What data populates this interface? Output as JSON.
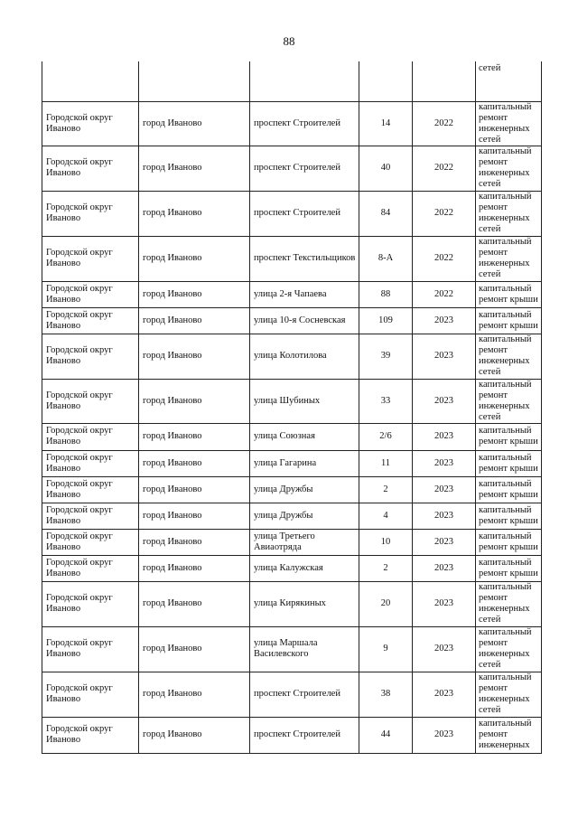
{
  "page_number": "88",
  "rows": [
    {
      "district": "",
      "city": "",
      "street": "",
      "house": "",
      "year": "",
      "work": "сетей"
    },
    {
      "district": "Городской округ Иваново",
      "city": "город Иваново",
      "street": "проспект Строителей",
      "house": "14",
      "year": "2022",
      "work": "капитальный ремонт инженерных сетей"
    },
    {
      "district": "Городской округ Иваново",
      "city": "город Иваново",
      "street": "проспект Строителей",
      "house": "40",
      "year": "2022",
      "work": "капитальный ремонт инженерных сетей"
    },
    {
      "district": "Городской округ Иваново",
      "city": "город Иваново",
      "street": "проспект Строителей",
      "house": "84",
      "year": "2022",
      "work": "капитальный ремонт инженерных сетей"
    },
    {
      "district": "Городской округ Иваново",
      "city": "город Иваново",
      "street": "проспект Текстильщиков",
      "house": "8-А",
      "year": "2022",
      "work": "капитальный ремонт инженерных сетей"
    },
    {
      "district": "Городской округ Иваново",
      "city": "город Иваново",
      "street": "улица 2-я Чапаева",
      "house": "88",
      "year": "2022",
      "work": "капитальный ремонт крыши"
    },
    {
      "district": "Городской округ Иваново",
      "city": "город Иваново",
      "street": "улица 10-я Сосневская",
      "house": "109",
      "year": "2023",
      "work": "капитальный ремонт крыши"
    },
    {
      "district": "Городской округ Иваново",
      "city": "город Иваново",
      "street": "улица Колотилова",
      "house": "39",
      "year": "2023",
      "work": "капитальный ремонт инженерных сетей"
    },
    {
      "district": "Городской округ Иваново",
      "city": "город Иваново",
      "street": "улица Шубиных",
      "house": "33",
      "year": "2023",
      "work": "капитальный ремонт инженерных сетей"
    },
    {
      "district": "Городской округ Иваново",
      "city": "город Иваново",
      "street": "улица Союзная",
      "house": "2/6",
      "year": "2023",
      "work": "капитальный ремонт крыши"
    },
    {
      "district": "Городской округ Иваново",
      "city": "город Иваново",
      "street": "улица Гагарина",
      "house": "11",
      "year": "2023",
      "work": "капитальный ремонт крыши"
    },
    {
      "district": "Городской округ Иваново",
      "city": "город Иваново",
      "street": "улица Дружбы",
      "house": "2",
      "year": "2023",
      "work": "капитальный ремонт крыши"
    },
    {
      "district": "Городской округ Иваново",
      "city": "город Иваново",
      "street": "улица Дружбы",
      "house": "4",
      "year": "2023",
      "work": "капитальный ремонт крыши"
    },
    {
      "district": "Городской округ Иваново",
      "city": "город Иваново",
      "street": "улица Третьего Авиаотряда",
      "house": "10",
      "year": "2023",
      "work": "капитальный ремонт крыши"
    },
    {
      "district": "Городской округ Иваново",
      "city": "город Иваново",
      "street": "улица Калужская",
      "house": "2",
      "year": "2023",
      "work": "капитальный ремонт крыши"
    },
    {
      "district": "Городской округ Иваново",
      "city": "город Иваново",
      "street": "улица Кирякиных",
      "house": "20",
      "year": "2023",
      "work": "капитальный ремонт инженерных сетей"
    },
    {
      "district": "Городской округ Иваново",
      "city": "город Иваново",
      "street": "улица Маршала Василевского",
      "house": "9",
      "year": "2023",
      "work": "капитальный ремонт инженерных сетей"
    },
    {
      "district": "Городской округ Иваново",
      "city": "город Иваново",
      "street": "проспект Строителей",
      "house": "38",
      "year": "2023",
      "work": "капитальный ремонт инженерных сетей"
    },
    {
      "district": "Городской округ Иваново",
      "city": "город Иваново",
      "street": "проспект Строителей",
      "house": "44",
      "year": "2023",
      "work": "капитальный ремонт инженерных"
    }
  ]
}
